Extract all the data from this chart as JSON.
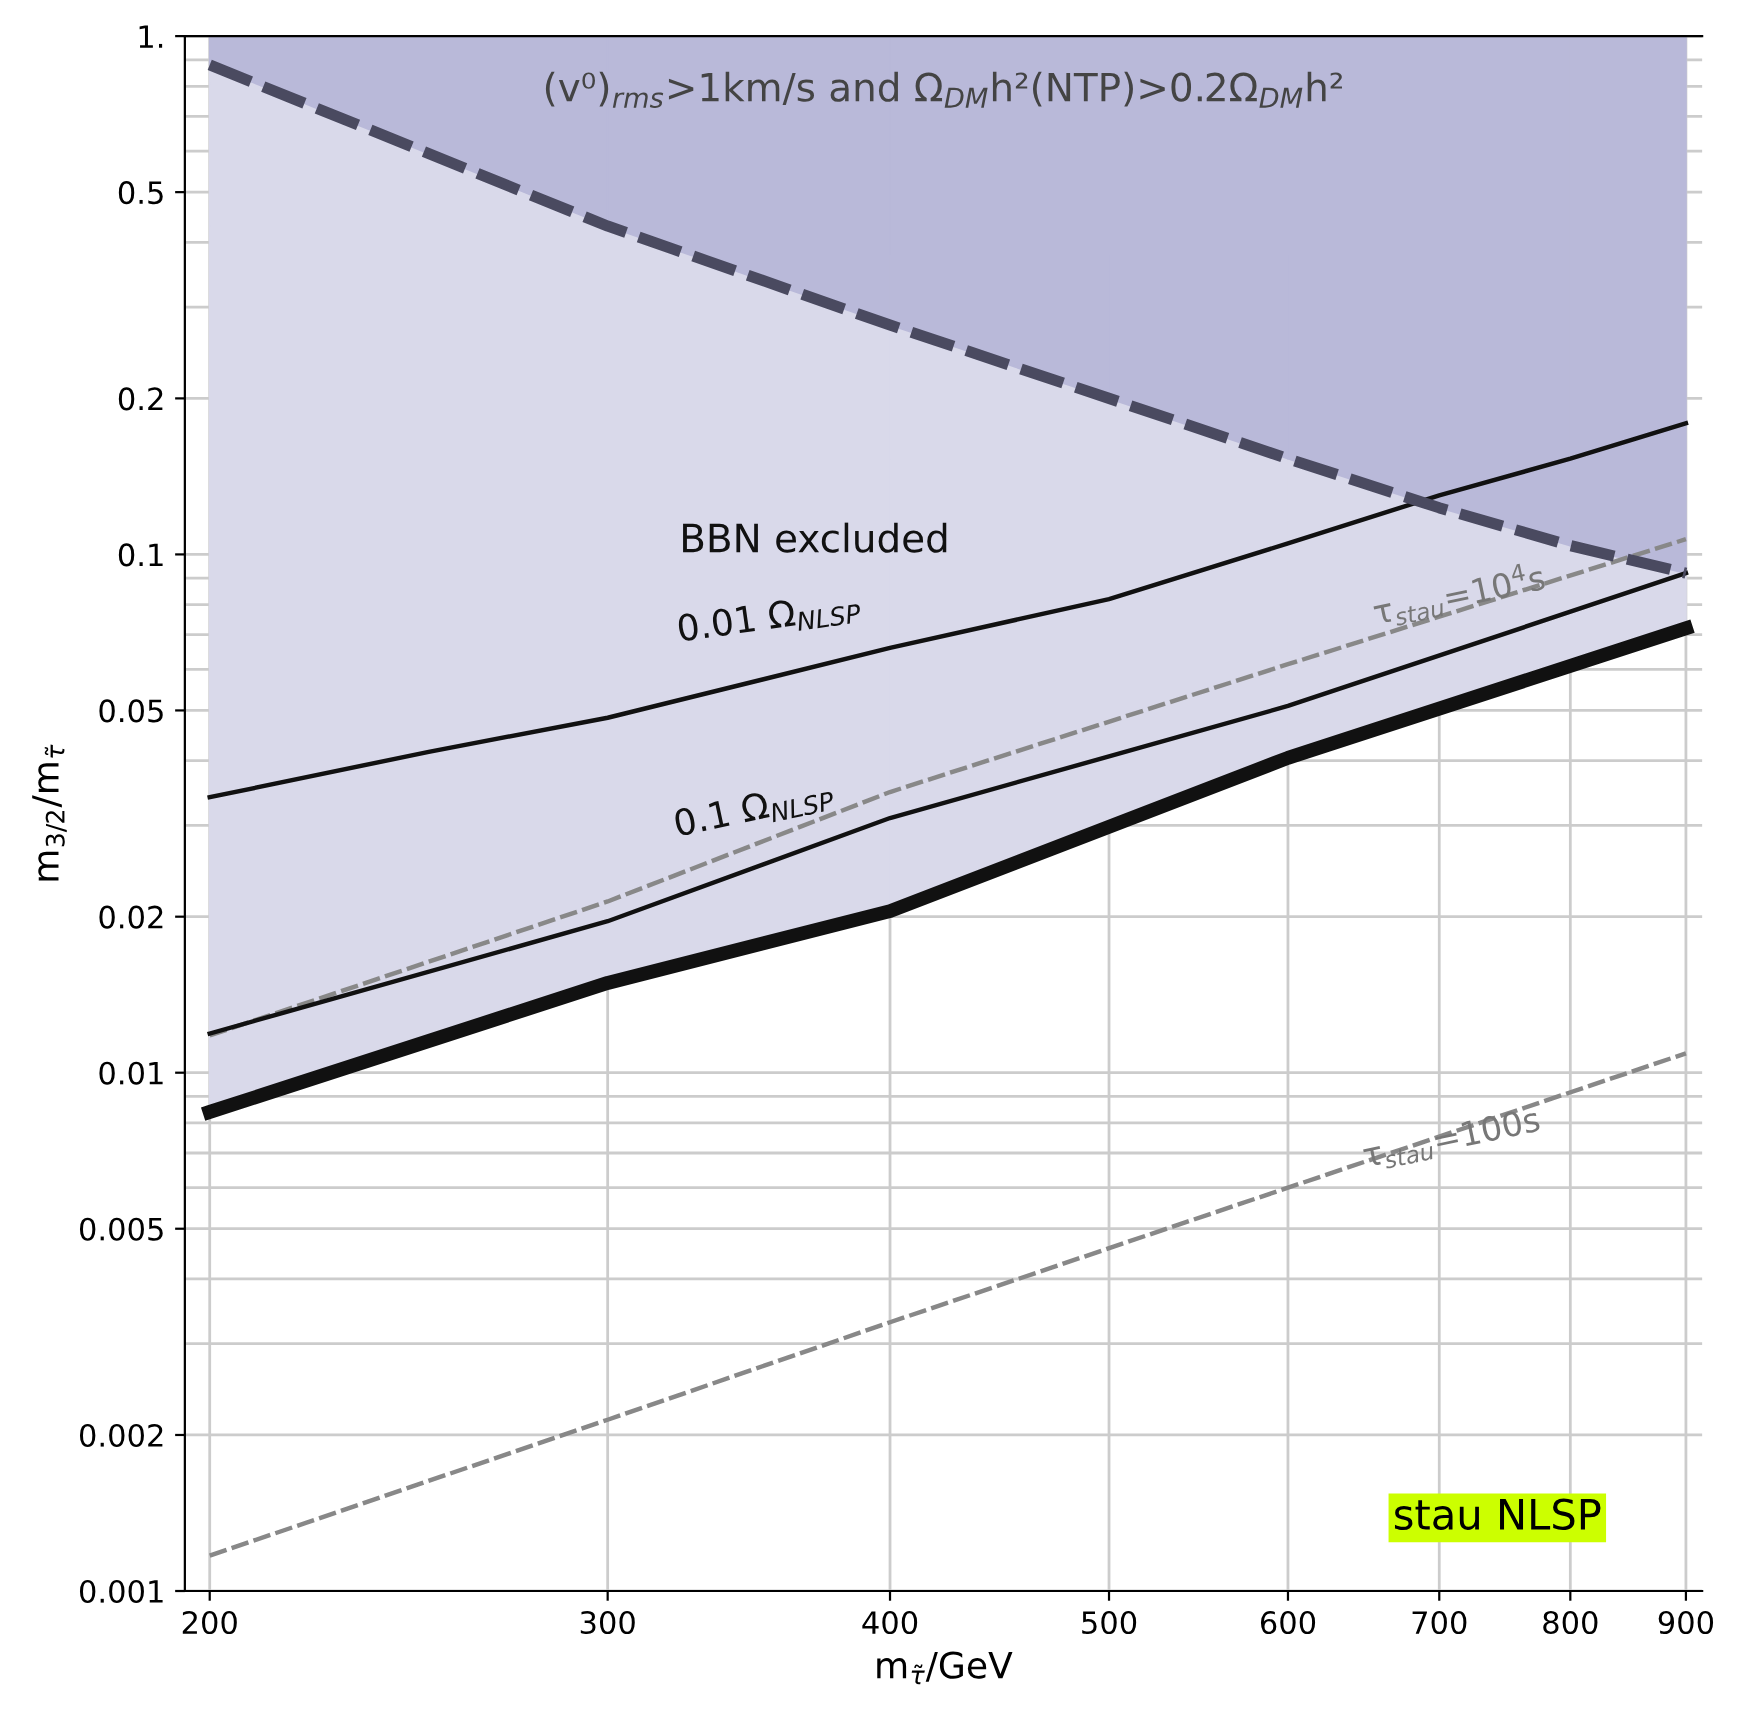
{
  "chart_data": {
    "type": "line",
    "xlabel": "m$_{τ̃}$/GeV",
    "ylabel": "m$_{3/2}$/m$_{τ̃}$",
    "log": "xy",
    "grid": true,
    "xlim": [
      195,
      915
    ],
    "ylim": [
      0.001,
      1
    ],
    "xticks": [
      200,
      300,
      400,
      500,
      600,
      700,
      800,
      900
    ],
    "yticks": [
      0.001,
      {
        "value": 0.002,
        "label": "0.002"
      },
      {
        "value": 0.003,
        "label": null
      },
      {
        "value": 0.004,
        "label": null
      },
      {
        "value": 0.005,
        "label": "0.005"
      },
      {
        "value": 0.006,
        "label": null
      },
      {
        "value": 0.007,
        "label": null
      },
      {
        "value": 0.008,
        "label": null
      },
      {
        "value": 0.009,
        "label": null
      },
      {
        "value": 0.01,
        "label": "0.01"
      },
      {
        "value": 0.02,
        "label": "0.02"
      },
      {
        "value": 0.03,
        "label": null
      },
      {
        "value": 0.04,
        "label": null
      },
      {
        "value": 0.05,
        "label": "0.05"
      },
      {
        "value": 0.06,
        "label": null
      },
      {
        "value": 0.07,
        "label": null
      },
      {
        "value": 0.08,
        "label": null
      },
      {
        "value": 0.09,
        "label": null
      },
      0.1,
      0.2,
      {
        "value": 0.3,
        "label": null
      },
      {
        "value": 0.4,
        "label": null
      },
      0.5,
      {
        "value": 0.6,
        "label": null
      },
      {
        "value": 0.7,
        "label": null
      },
      {
        "value": 0.8,
        "label": null
      },
      {
        "value": 0.9,
        "label": null
      },
      {
        "value": 1,
        "label": "1."
      }
    ],
    "x": [
      200,
      300,
      400,
      500,
      600,
      700,
      800,
      900
    ],
    "series": [
      {
        "color": "#111111",
        "colors": [
          "#d9d9ea",
          "#d9d9ea",
          "#d9d9ea",
          "#d9d9ea",
          "#d9d9ea"
        ],
        "line_style": "solid",
        "x": [
          200,
          300,
          400,
          600,
          900
        ],
        "values": [
          0.0084,
          0.0149,
          0.0205,
          0.0405,
          0.072
        ],
        "lower": [
          0.0084,
          0.0149,
          0.0205,
          0.0405,
          0.072
        ],
        "upper": [
          0.88,
          0.43,
          0.277,
          0.153,
          0.092
        ]
      },
      {
        "color": "#4a4a60",
        "colors": [
          "#b9b9d9",
          "#b9b9d9",
          "#b9b9d9",
          "#b9b9d9",
          "#b9b9d9",
          "#b9b9d9",
          "#b9b9d9",
          "#b9b9d9"
        ],
        "line_style": "dashed",
        "values": [
          0.88,
          0.43,
          0.277,
          0.2,
          0.153,
          0.123,
          0.104,
          0.092
        ],
        "lower": [
          0.88,
          0.43,
          0.277,
          0.2,
          0.153,
          0.123,
          0.104,
          0.092
        ],
        "upper": [
          1,
          1,
          1,
          1,
          1,
          1,
          1,
          1
        ]
      },
      {
        "color": "#111111",
        "line_style": "solid",
        "x": [
          200,
          250,
          300,
          400,
          500,
          600,
          700,
          800,
          900
        ],
        "values": [
          0.034,
          0.0416,
          0.0484,
          0.066,
          0.082,
          0.105,
          0.13,
          0.153,
          0.179
        ]
      },
      {
        "color": "#888888",
        "line_style": "dashed",
        "x": [
          200,
          300,
          400,
          600,
          900
        ],
        "values": [
          0.0118,
          0.0214,
          0.0348,
          0.0614,
          0.107
        ]
      },
      {
        "color": "#111111",
        "line_style": "solid",
        "x": [
          200,
          300,
          400,
          600,
          900
        ],
        "values": [
          0.0119,
          0.0196,
          0.031,
          0.051,
          0.092
        ]
      },
      {
        "color": "#888888",
        "line_style": "dashed",
        "x": [
          200,
          300,
          400,
          600,
          900
        ],
        "values": [
          0.00117,
          0.00214,
          0.0033,
          0.006,
          0.0109
        ]
      }
    ],
    "annotations": [
      "(v⁰)$_{rms}$>1km/s and Ω$_{DM}$h²(NTP)>0.2Ω$_{DM}$h²",
      "BBN excluded",
      "0.01 Ω$_{NLSP}$",
      "0.1 Ω$_{NLSP}$",
      "τ$_{stau}$=10$^{4}$s",
      "τ$_{stau}$=100s",
      "stau NLSP"
    ]
  }
}
